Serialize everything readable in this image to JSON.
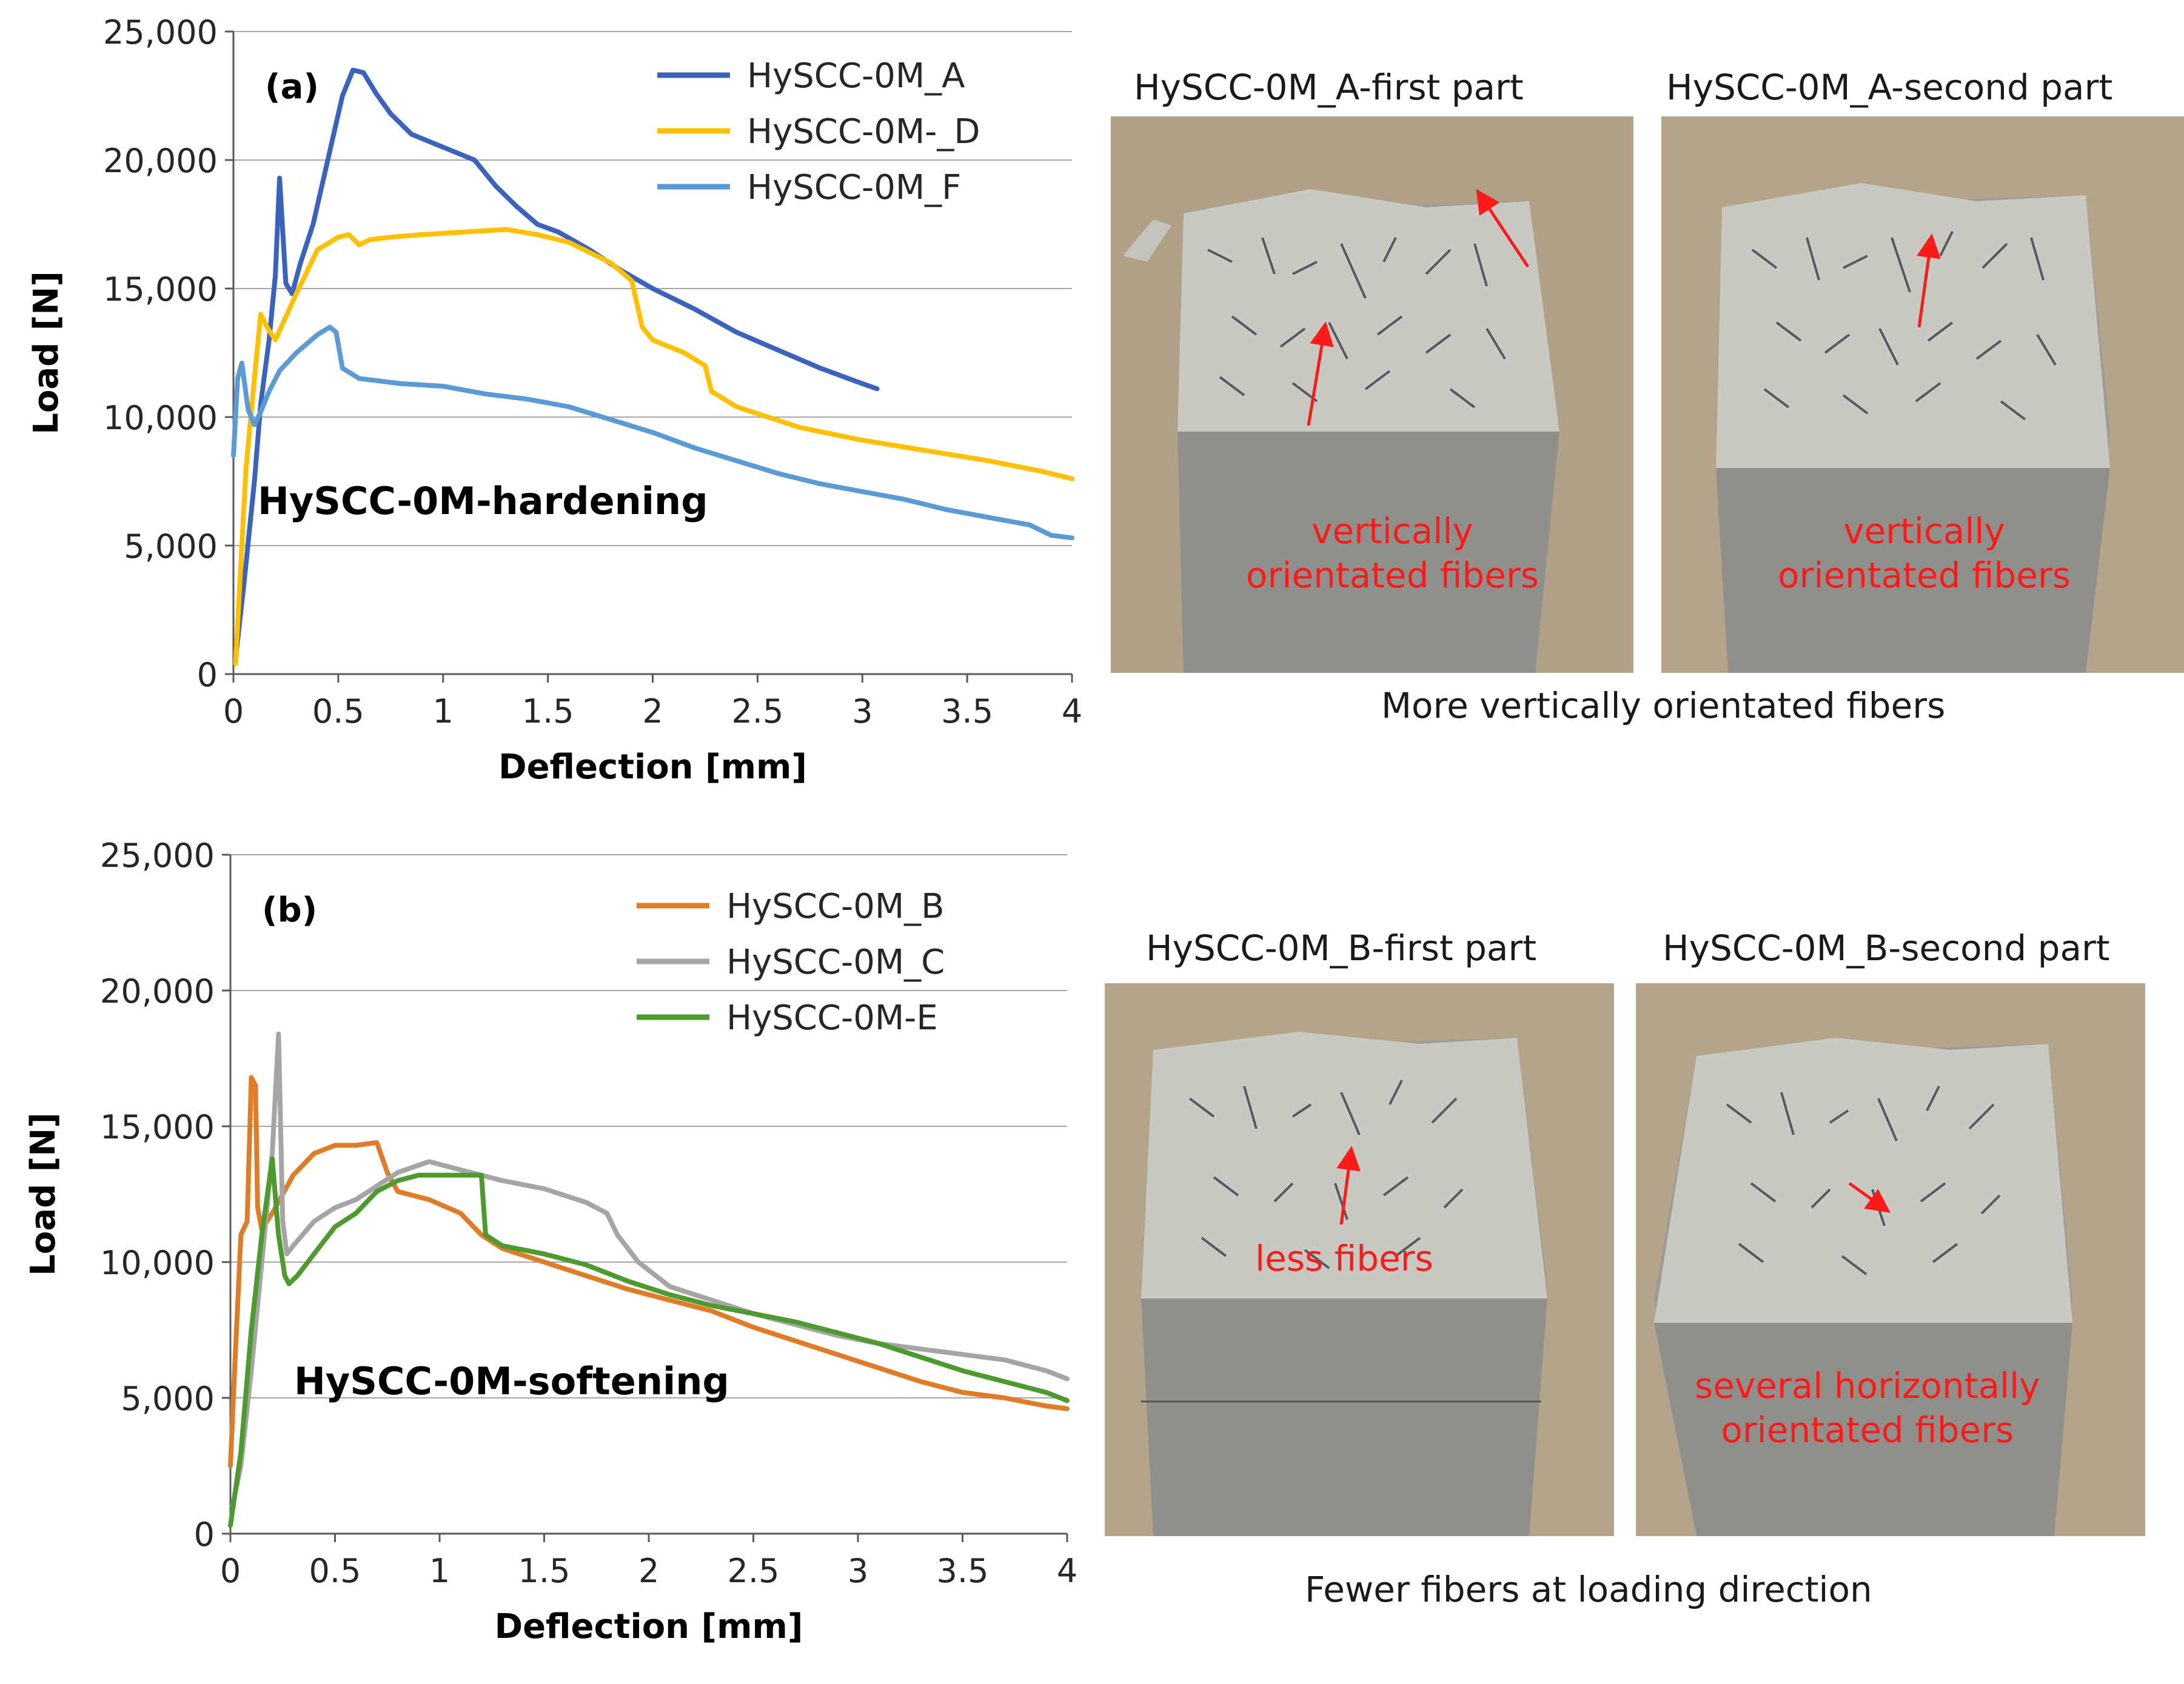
{
  "chart_data": [
    {
      "type": "line",
      "panel_label": "(a)",
      "annotation": "HySCC-0M-hardening",
      "xlabel": "Deflection [mm]",
      "ylabel": "Load [N]",
      "xlim": [
        0,
        4
      ],
      "ylim": [
        0,
        25000
      ],
      "xticks": [
        0,
        0.5,
        1,
        1.5,
        2,
        2.5,
        3,
        3.5,
        4
      ],
      "xtick_labels": [
        "0",
        "0.5",
        "1",
        "1.5",
        "2",
        "2.5",
        "3",
        "3.5",
        "4"
      ],
      "yticks": [
        0,
        5000,
        10000,
        15000,
        20000,
        25000
      ],
      "ytick_labels": [
        "0",
        "5,000",
        "10,000",
        "15,000",
        "20,000",
        "25,000"
      ],
      "grid": "horizontal",
      "legend_position": "top-right",
      "series": [
        {
          "name": "HySCC-0M_A",
          "color": "#3b63bd",
          "x": [
            0.01,
            0.05,
            0.1,
            0.13,
            0.17,
            0.2,
            0.22,
            0.25,
            0.28,
            0.32,
            0.38,
            0.45,
            0.52,
            0.57,
            0.62,
            0.68,
            0.75,
            0.85,
            1.0,
            1.15,
            1.25,
            1.35,
            1.45,
            1.55,
            1.7,
            1.85,
            2.0,
            2.2,
            2.4,
            2.6,
            2.8,
            3.0,
            3.07
          ],
          "y": [
            600,
            3500,
            7500,
            10500,
            13000,
            15500,
            19300,
            15200,
            14800,
            16000,
            17500,
            20000,
            22500,
            23500,
            23400,
            22600,
            21800,
            21000,
            20500,
            20000,
            19000,
            18200,
            17500,
            17200,
            16500,
            15700,
            15000,
            14200,
            13300,
            12600,
            11900,
            11300,
            11100
          ]
        },
        {
          "name": "HySCC-0M-_D",
          "color": "#ffc000",
          "x": [
            0.01,
            0.03,
            0.06,
            0.1,
            0.13,
            0.16,
            0.2,
            0.3,
            0.4,
            0.5,
            0.55,
            0.6,
            0.65,
            0.75,
            0.9,
            1.1,
            1.3,
            1.45,
            1.6,
            1.8,
            1.9,
            1.95,
            2.0,
            2.15,
            2.25,
            2.28,
            2.4,
            2.7,
            3.0,
            3.3,
            3.6,
            3.85,
            4.0
          ],
          "y": [
            400,
            3500,
            8000,
            11500,
            14000,
            13500,
            13000,
            14800,
            16500,
            17000,
            17100,
            16700,
            16900,
            17000,
            17100,
            17200,
            17300,
            17100,
            16800,
            16000,
            15300,
            13500,
            13000,
            12500,
            12000,
            11000,
            10400,
            9600,
            9100,
            8700,
            8300,
            7900,
            7600
          ]
        },
        {
          "name": "HySCC-0M_F",
          "color": "#5b9bd5",
          "x": [
            0.0,
            0.02,
            0.04,
            0.07,
            0.1,
            0.13,
            0.17,
            0.22,
            0.3,
            0.4,
            0.46,
            0.49,
            0.52,
            0.6,
            0.8,
            1.0,
            1.2,
            1.4,
            1.6,
            1.8,
            2.0,
            2.2,
            2.4,
            2.6,
            2.8,
            3.0,
            3.2,
            3.4,
            3.6,
            3.8,
            3.9,
            4.0
          ],
          "y": [
            8500,
            11500,
            12100,
            10300,
            9700,
            10200,
            11000,
            11800,
            12500,
            13200,
            13500,
            13300,
            11900,
            11500,
            11300,
            11200,
            10900,
            10700,
            10400,
            9900,
            9400,
            8800,
            8300,
            7800,
            7400,
            7100,
            6800,
            6400,
            6100,
            5800,
            5400,
            5300
          ]
        }
      ]
    },
    {
      "type": "line",
      "panel_label": "(b)",
      "annotation": "HySCC-0M-softening",
      "xlabel": "Deflection [mm]",
      "ylabel": "Load [N]",
      "xlim": [
        0,
        4
      ],
      "ylim": [
        0,
        25000
      ],
      "xticks": [
        0,
        0.5,
        1,
        1.5,
        2,
        2.5,
        3,
        3.5,
        4
      ],
      "xtick_labels": [
        "0",
        "0.5",
        "1",
        "1.5",
        "2",
        "2.5",
        "3",
        "3.5",
        "4"
      ],
      "yticks": [
        0,
        5000,
        10000,
        15000,
        20000,
        25000
      ],
      "ytick_labels": [
        "0",
        "5,000",
        "10,000",
        "15,000",
        "20,000",
        "25,000"
      ],
      "grid": "horizontal",
      "legend_position": "top-right",
      "series": [
        {
          "name": "HySCC-0M_B",
          "color": "#e07b27",
          "x": [
            0.0,
            0.02,
            0.05,
            0.08,
            0.1,
            0.12,
            0.13,
            0.15,
            0.2,
            0.3,
            0.4,
            0.5,
            0.6,
            0.7,
            0.75,
            0.8,
            0.95,
            1.1,
            1.2,
            1.3,
            1.5,
            1.7,
            1.9,
            2.1,
            2.3,
            2.5,
            2.7,
            2.9,
            3.1,
            3.3,
            3.5,
            3.7,
            3.9,
            4.0
          ],
          "y": [
            2500,
            6000,
            11000,
            11500,
            16800,
            16500,
            12000,
            11200,
            11800,
            13200,
            14000,
            14300,
            14300,
            14400,
            13300,
            12600,
            12300,
            11800,
            11000,
            10500,
            10000,
            9500,
            9000,
            8600,
            8200,
            7600,
            7100,
            6600,
            6100,
            5600,
            5200,
            5000,
            4700,
            4600
          ]
        },
        {
          "name": "HySCC-0M_C",
          "color": "#a5a5a5",
          "x": [
            0.01,
            0.05,
            0.1,
            0.15,
            0.2,
            0.23,
            0.25,
            0.27,
            0.3,
            0.4,
            0.5,
            0.6,
            0.7,
            0.8,
            0.95,
            1.1,
            1.3,
            1.5,
            1.7,
            1.8,
            1.85,
            1.95,
            2.1,
            2.3,
            2.5,
            2.7,
            2.9,
            3.1,
            3.3,
            3.5,
            3.7,
            3.9,
            4.0
          ],
          "y": [
            1000,
            2500,
            6000,
            10000,
            14000,
            18400,
            11500,
            10300,
            10600,
            11500,
            12000,
            12300,
            12800,
            13300,
            13700,
            13400,
            13000,
            12700,
            12200,
            11800,
            11000,
            10000,
            9100,
            8600,
            8100,
            7700,
            7300,
            7000,
            6800,
            6600,
            6400,
            6000,
            5700
          ]
        },
        {
          "name": "HySCC-0M-E",
          "color": "#4e9a2e",
          "x": [
            0.0,
            0.05,
            0.1,
            0.15,
            0.2,
            0.23,
            0.26,
            0.28,
            0.32,
            0.4,
            0.5,
            0.6,
            0.7,
            0.8,
            0.9,
            1.0,
            1.1,
            1.2,
            1.22,
            1.3,
            1.5,
            1.7,
            1.9,
            2.1,
            2.3,
            2.5,
            2.7,
            2.9,
            3.1,
            3.3,
            3.5,
            3.7,
            3.9,
            4.0
          ],
          "y": [
            300,
            3000,
            7500,
            11000,
            13800,
            11000,
            9500,
            9200,
            9500,
            10300,
            11300,
            11800,
            12600,
            13000,
            13200,
            13200,
            13200,
            13200,
            11000,
            10600,
            10300,
            9900,
            9300,
            8800,
            8400,
            8100,
            7800,
            7400,
            7000,
            6500,
            6000,
            5600,
            5200,
            4900
          ]
        }
      ]
    }
  ],
  "photos": {
    "top": {
      "left_title": "HySCC-0M_A-first part",
      "right_title": "HySCC-0M_A-second part",
      "left_note": [
        "vertically",
        "orientated fibers"
      ],
      "right_note": [
        "vertically",
        "orientated fibers"
      ],
      "caption": "More vertically orientated fibers"
    },
    "bottom": {
      "left_title": "HySCC-0M_B-first part",
      "right_title": "HySCC-0M_B-second part",
      "left_note": [
        "less fibers"
      ],
      "right_note": [
        "several horizontally",
        "orientated fibers"
      ],
      "caption": "Fewer fibers at loading direction"
    }
  }
}
